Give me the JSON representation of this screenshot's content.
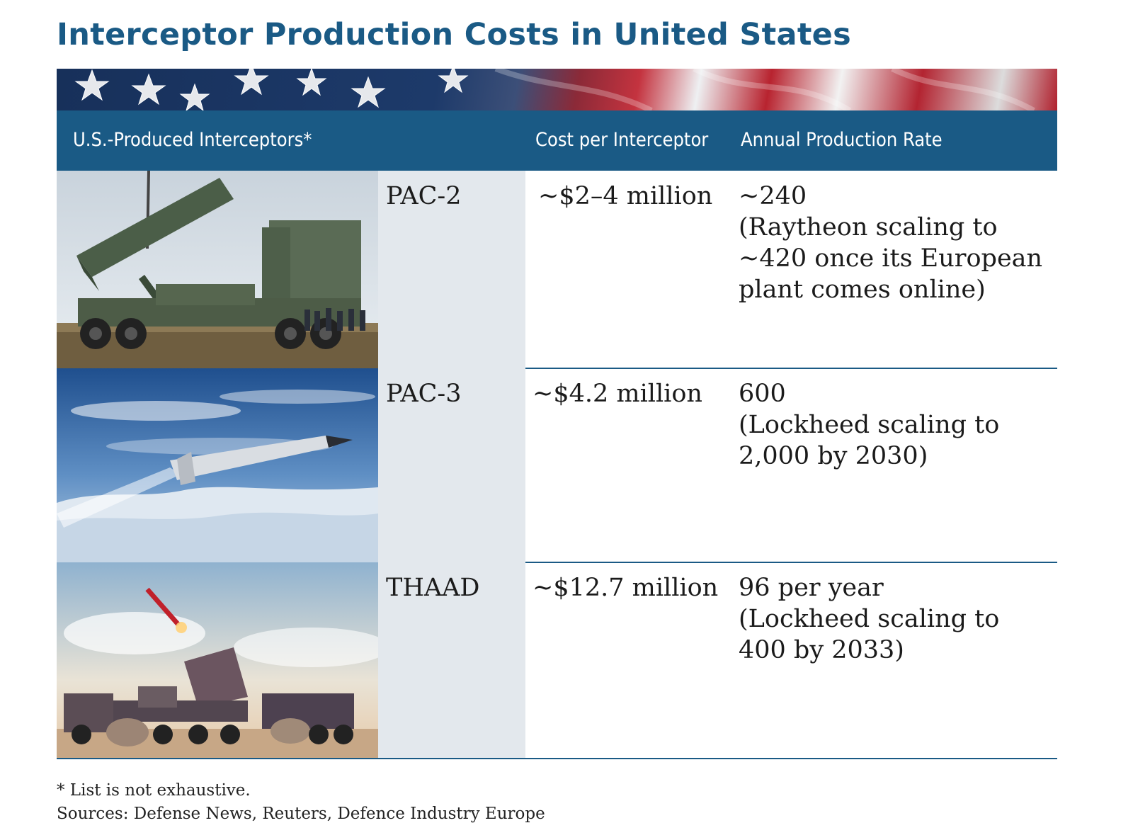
{
  "chart_data": {
    "type": "table",
    "title": "Interceptor Production Costs in United States",
    "columns": [
      "U.S.-Produced Interceptors*",
      "Cost per Interceptor",
      "Annual Production Rate"
    ],
    "rows": [
      {
        "name": "PAC-2",
        "cost": "~$2–4 million",
        "rate_lines": [
          "~240",
          "(Raytheon scaling to",
          "~420 once its European",
          "plant comes online)"
        ],
        "photo_icon": "patriot-launcher-truck-photo"
      },
      {
        "name": "PAC-3",
        "cost": "~$4.2 million",
        "rate_lines": [
          "600",
          "(Lockheed scaling to",
          "2,000 by 2030)"
        ],
        "photo_icon": "missile-in-flight-above-clouds-photo"
      },
      {
        "name": "THAAD",
        "cost": "~$12.7 million",
        "rate_lines": [
          "96 per year",
          "(Lockheed scaling to",
          "400 by 2033)"
        ],
        "photo_icon": "thaad-launcher-battery-photo"
      }
    ]
  },
  "footnote": "* List is not exhaustive.",
  "sources": "Sources: Defense News, Reuters, Defence Industry Europe",
  "banner_icon": "us-flag-banner",
  "colors": {
    "brand_blue": "#1a5a85",
    "name_column_bg": "#e3e8ed",
    "text": "#1b1b1b"
  }
}
